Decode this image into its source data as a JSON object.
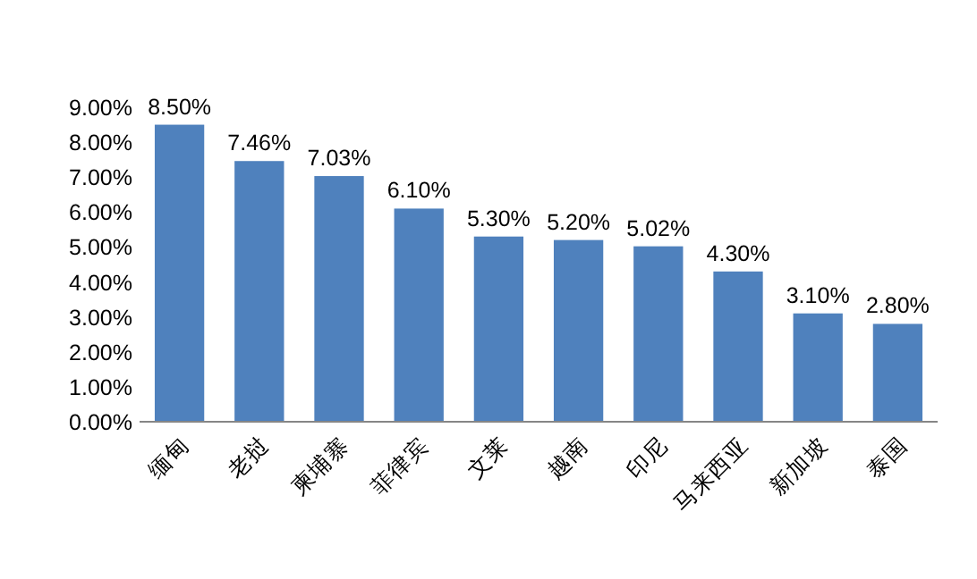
{
  "chart_data": {
    "type": "bar",
    "categories": [
      "缅甸",
      "老挝",
      "柬埔寨",
      "菲律宾",
      "文莱",
      "越南",
      "印尼",
      "马来西亚",
      "新加坡",
      "泰国"
    ],
    "values": [
      8.5,
      7.46,
      7.03,
      6.1,
      5.3,
      5.2,
      5.02,
      4.3,
      3.1,
      2.8
    ],
    "value_labels": [
      "8.50%",
      "7.46%",
      "7.03%",
      "6.10%",
      "5.30%",
      "5.20%",
      "5.02%",
      "4.30%",
      "3.10%",
      "2.80%"
    ],
    "color": "#4f81bd",
    "ylim": [
      0,
      9
    ],
    "yticks": [
      {
        "value": 0,
        "label": "0.00%"
      },
      {
        "value": 1,
        "label": "1.00%"
      },
      {
        "value": 2,
        "label": "2.00%"
      },
      {
        "value": 3,
        "label": "3.00%"
      },
      {
        "value": 4,
        "label": "4.00%"
      },
      {
        "value": 5,
        "label": "5.00%"
      },
      {
        "value": 6,
        "label": "6.00%"
      },
      {
        "value": 7,
        "label": "7.00%"
      },
      {
        "value": 8,
        "label": "8.00%"
      },
      {
        "value": 9,
        "label": "9.00%"
      }
    ],
    "grid": false
  }
}
